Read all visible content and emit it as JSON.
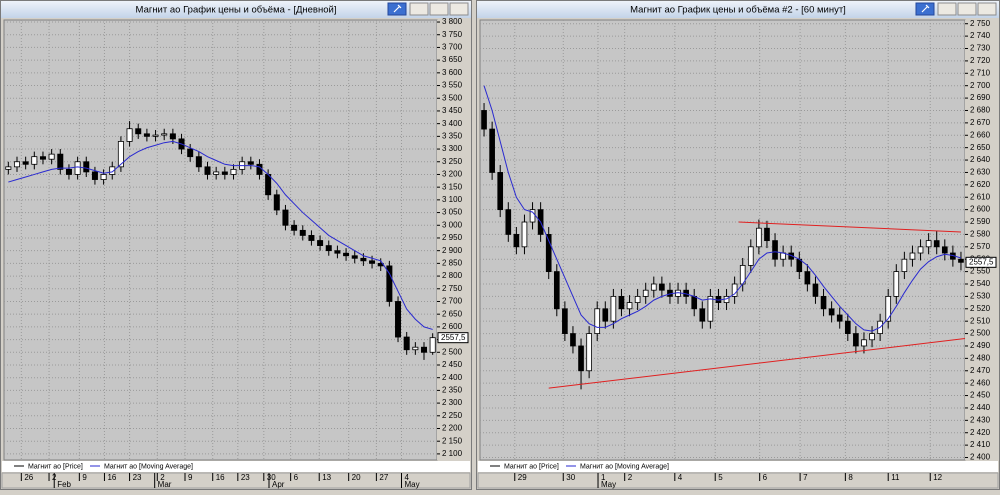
{
  "chart_data": [
    {
      "type": "candlestick",
      "title": "Магнит ао График цены и объёма - [Дневной]",
      "ylim": [
        2076,
        3808
      ],
      "yticks": [
        {
          "value": 3800,
          "label": "3 800"
        },
        {
          "value": 3750,
          "label": "3 750"
        },
        {
          "value": 3700,
          "label": "3 700"
        },
        {
          "value": 3650,
          "label": "3 650"
        },
        {
          "value": 3600,
          "label": "3 600"
        },
        {
          "value": 3550,
          "label": "3 550"
        },
        {
          "value": 3500,
          "label": "3 500"
        },
        {
          "value": 3450,
          "label": "3 450"
        },
        {
          "value": 3400,
          "label": "3 400"
        },
        {
          "value": 3350,
          "label": "3 350"
        },
        {
          "value": 3300,
          "label": "3 300"
        },
        {
          "value": 3250,
          "label": "3 250"
        },
        {
          "value": 3200,
          "label": "3 200"
        },
        {
          "value": 3150,
          "label": "3 150"
        },
        {
          "value": 3100,
          "label": "3 100"
        },
        {
          "value": 3050,
          "label": "3 050"
        },
        {
          "value": 3000,
          "label": "3 000"
        },
        {
          "value": 2950,
          "label": "2 950"
        },
        {
          "value": 2900,
          "label": "2 900"
        },
        {
          "value": 2850,
          "label": "2 850"
        },
        {
          "value": 2800,
          "label": "2 800"
        },
        {
          "value": 2750,
          "label": "2 750"
        },
        {
          "value": 2700,
          "label": "2 700"
        },
        {
          "value": 2650,
          "label": "2 650"
        },
        {
          "value": 2600,
          "label": "2 600"
        },
        {
          "value": 2550,
          "label": "2 550"
        },
        {
          "value": 2500,
          "label": "2 500"
        },
        {
          "value": 2450,
          "label": "2 450"
        },
        {
          "value": 2400,
          "label": "2 400"
        },
        {
          "value": 2350,
          "label": "2 350"
        },
        {
          "value": 2300,
          "label": "2 300"
        },
        {
          "value": 2250,
          "label": "2 250"
        },
        {
          "value": 2200,
          "label": "2 200"
        },
        {
          "value": 2150,
          "label": "2 150"
        },
        {
          "value": 2100,
          "label": "2 100"
        }
      ],
      "xticks": [
        {
          "value": 1.5,
          "label": "26"
        },
        {
          "value": 4.7,
          "label": "2"
        },
        {
          "value": 8.2,
          "label": "9"
        },
        {
          "value": 11.1,
          "label": "16"
        },
        {
          "value": 14,
          "label": "23"
        },
        {
          "value": 17.2,
          "label": "2"
        },
        {
          "value": 20.4,
          "label": "9"
        },
        {
          "value": 23.6,
          "label": "16"
        },
        {
          "value": 26.5,
          "label": "23"
        },
        {
          "value": 29.5,
          "label": "30"
        },
        {
          "value": 32.6,
          "label": "6"
        },
        {
          "value": 35.9,
          "label": "13"
        },
        {
          "value": 39.3,
          "label": "20"
        },
        {
          "value": 42.5,
          "label": "27"
        },
        {
          "value": 45.4,
          "label": "4"
        }
      ],
      "months": [
        {
          "value": 5.3,
          "label": "Feb"
        },
        {
          "value": 16.9,
          "label": "Mar"
        },
        {
          "value": 30.1,
          "label": "Apr"
        },
        {
          "value": 45.4,
          "label": "May"
        }
      ],
      "grid": true,
      "last_price": {
        "value": 2557.5,
        "label": "2557,5"
      },
      "series": [
        {
          "name": "Магнит ао [Price]",
          "color": "#000000",
          "open": [
            3220,
            3230,
            3250,
            3240,
            3270,
            3260,
            3280,
            3220,
            3200,
            3250,
            3210,
            3180,
            3200,
            3230,
            3330,
            3380,
            3360,
            3350,
            3355,
            3360,
            3340,
            3300,
            3270,
            3230,
            3200,
            3210,
            3200,
            3220,
            3250,
            3240,
            3200,
            3120,
            3060,
            3000,
            2980,
            2960,
            2940,
            2920,
            2900,
            2890,
            2880,
            2870,
            2860,
            2850,
            2840,
            2700,
            2560,
            2510,
            2520,
            2500
          ],
          "high": [
            3250,
            3270,
            3270,
            3290,
            3290,
            3300,
            3300,
            3240,
            3270,
            3270,
            3230,
            3220,
            3250,
            3350,
            3410,
            3400,
            3380,
            3375,
            3380,
            3380,
            3360,
            3320,
            3290,
            3250,
            3230,
            3230,
            3240,
            3270,
            3270,
            3260,
            3220,
            3140,
            3080,
            3020,
            3000,
            2980,
            2960,
            2940,
            2920,
            2910,
            2900,
            2890,
            2880,
            2870,
            2860,
            2720,
            2580,
            2540,
            2540,
            2575
          ],
          "low": [
            3200,
            3210,
            3220,
            3220,
            3240,
            3240,
            3200,
            3180,
            3180,
            3190,
            3160,
            3160,
            3180,
            3210,
            3310,
            3340,
            3330,
            3330,
            3335,
            3320,
            3280,
            3250,
            3210,
            3180,
            3180,
            3180,
            3180,
            3200,
            3220,
            3180,
            3100,
            3040,
            2980,
            2960,
            2940,
            2920,
            2900,
            2880,
            2870,
            2860,
            2850,
            2840,
            2830,
            2820,
            2680,
            2540,
            2490,
            2490,
            2470,
            2490
          ],
          "close": [
            3230,
            3250,
            3240,
            3270,
            3260,
            3280,
            3220,
            3200,
            3250,
            3210,
            3180,
            3200,
            3230,
            3330,
            3380,
            3360,
            3350,
            3355,
            3360,
            3340,
            3300,
            3270,
            3230,
            3200,
            3210,
            3200,
            3220,
            3250,
            3240,
            3200,
            3120,
            3060,
            3000,
            2980,
            2960,
            2940,
            2920,
            2900,
            2890,
            2880,
            2870,
            2860,
            2850,
            2840,
            2700,
            2560,
            2510,
            2520,
            2500,
            2557.5
          ]
        },
        {
          "name": "Магнит ао [Moving Average]",
          "color": "#2a2ad0",
          "values": [
            3170,
            3180,
            3190,
            3200,
            3210,
            3220,
            3225,
            3225,
            3230,
            3225,
            3215,
            3205,
            3210,
            3240,
            3270,
            3290,
            3305,
            3315,
            3325,
            3330,
            3320,
            3305,
            3290,
            3270,
            3255,
            3240,
            3235,
            3235,
            3235,
            3230,
            3200,
            3165,
            3120,
            3085,
            3050,
            3020,
            2990,
            2960,
            2940,
            2920,
            2900,
            2880,
            2870,
            2860,
            2810,
            2740,
            2670,
            2630,
            2600,
            2590
          ]
        }
      ]
    },
    {
      "type": "candlestick",
      "title": "Магнит ао График цены и объёма #2 - [60 минут]",
      "ylim": [
        2398,
        2753
      ],
      "yticks": [
        {
          "value": 2750,
          "label": "2 750"
        },
        {
          "value": 2740,
          "label": "2 740"
        },
        {
          "value": 2730,
          "label": "2 730"
        },
        {
          "value": 2720,
          "label": "2 720"
        },
        {
          "value": 2710,
          "label": "2 710"
        },
        {
          "value": 2700,
          "label": "2 700"
        },
        {
          "value": 2690,
          "label": "2 690"
        },
        {
          "value": 2680,
          "label": "2 680"
        },
        {
          "value": 2670,
          "label": "2 670"
        },
        {
          "value": 2660,
          "label": "2 660"
        },
        {
          "value": 2650,
          "label": "2 650"
        },
        {
          "value": 2640,
          "label": "2 640"
        },
        {
          "value": 2630,
          "label": "2 630"
        },
        {
          "value": 2620,
          "label": "2 620"
        },
        {
          "value": 2610,
          "label": "2 610"
        },
        {
          "value": 2600,
          "label": "2 600"
        },
        {
          "value": 2590,
          "label": "2 590"
        },
        {
          "value": 2580,
          "label": "2 580"
        },
        {
          "value": 2570,
          "label": "2 570"
        },
        {
          "value": 2560,
          "label": "2 560"
        },
        {
          "value": 2550,
          "label": "2 550"
        },
        {
          "value": 2540,
          "label": "2 540"
        },
        {
          "value": 2530,
          "label": "2 530"
        },
        {
          "value": 2520,
          "label": "2 520"
        },
        {
          "value": 2510,
          "label": "2 510"
        },
        {
          "value": 2500,
          "label": "2 500"
        },
        {
          "value": 2490,
          "label": "2 490"
        },
        {
          "value": 2480,
          "label": "2 480"
        },
        {
          "value": 2470,
          "label": "2 470"
        },
        {
          "value": 2460,
          "label": "2 460"
        },
        {
          "value": 2450,
          "label": "2 450"
        },
        {
          "value": 2440,
          "label": "2 440"
        },
        {
          "value": 2430,
          "label": "2 430"
        },
        {
          "value": 2420,
          "label": "2 420"
        },
        {
          "value": 2410,
          "label": "2 410"
        },
        {
          "value": 2400,
          "label": "2 400"
        }
      ],
      "xticks": [
        {
          "value": 3.8,
          "label": "29"
        },
        {
          "value": 9.8,
          "label": "30"
        },
        {
          "value": 14.1,
          "label": "1"
        },
        {
          "value": 17.4,
          "label": "2"
        },
        {
          "value": 23.6,
          "label": "4"
        },
        {
          "value": 28.6,
          "label": "5"
        },
        {
          "value": 34.1,
          "label": "6"
        },
        {
          "value": 39.1,
          "label": "7"
        },
        {
          "value": 44.7,
          "label": "8"
        },
        {
          "value": 50,
          "label": "11"
        },
        {
          "value": 55.2,
          "label": "12"
        }
      ],
      "months": [
        {
          "value": 14.1,
          "label": "May"
        }
      ],
      "grid": true,
      "last_price": {
        "value": 2557.5,
        "label": "2557,5"
      },
      "trendlines": [
        {
          "color": "#e02020",
          "from": [
            8,
            2456
          ],
          "to": [
            59.5,
            2496
          ]
        },
        {
          "color": "#e02020",
          "from": [
            31.5,
            2590
          ],
          "to": [
            59,
            2582
          ]
        }
      ],
      "series": [
        {
          "name": "Магнит ао [Price]",
          "color": "#000000",
          "open": [
            2680,
            2665,
            2630,
            2600,
            2580,
            2570,
            2590,
            2600,
            2580,
            2550,
            2520,
            2500,
            2490,
            2470,
            2500,
            2520,
            2510,
            2530,
            2520,
            2525,
            2530,
            2535,
            2540,
            2535,
            2530,
            2535,
            2530,
            2520,
            2510,
            2530,
            2525,
            2530,
            2540,
            2555,
            2570,
            2585,
            2575,
            2560,
            2565,
            2560,
            2550,
            2540,
            2530,
            2520,
            2515,
            2510,
            2500,
            2490,
            2495,
            2500,
            2510,
            2530,
            2550,
            2560,
            2565,
            2570,
            2575,
            2570,
            2565,
            2560
          ],
          "high": [
            2686,
            2671,
            2636,
            2606,
            2586,
            2596,
            2606,
            2606,
            2586,
            2556,
            2526,
            2506,
            2496,
            2506,
            2526,
            2526,
            2536,
            2536,
            2531,
            2536,
            2541,
            2546,
            2546,
            2541,
            2541,
            2541,
            2536,
            2526,
            2536,
            2536,
            2536,
            2546,
            2561,
            2576,
            2592,
            2591,
            2581,
            2571,
            2571,
            2566,
            2556,
            2546,
            2536,
            2526,
            2521,
            2516,
            2506,
            2501,
            2506,
            2516,
            2536,
            2556,
            2566,
            2571,
            2576,
            2581,
            2583,
            2576,
            2571,
            2566
          ],
          "low": [
            2659,
            2624,
            2594,
            2574,
            2564,
            2564,
            2584,
            2574,
            2544,
            2514,
            2494,
            2484,
            2455,
            2464,
            2494,
            2504,
            2504,
            2514,
            2514,
            2519,
            2524,
            2529,
            2529,
            2524,
            2524,
            2524,
            2514,
            2504,
            2504,
            2519,
            2519,
            2524,
            2534,
            2549,
            2564,
            2569,
            2554,
            2554,
            2554,
            2544,
            2534,
            2524,
            2514,
            2509,
            2504,
            2494,
            2484,
            2484,
            2489,
            2494,
            2504,
            2524,
            2544,
            2554,
            2559,
            2564,
            2564,
            2559,
            2554,
            2551
          ],
          "close": [
            2665,
            2630,
            2600,
            2580,
            2570,
            2590,
            2600,
            2580,
            2550,
            2520,
            2500,
            2490,
            2470,
            2500,
            2520,
            2510,
            2530,
            2520,
            2525,
            2530,
            2535,
            2540,
            2535,
            2530,
            2535,
            2530,
            2520,
            2510,
            2530,
            2525,
            2530,
            2540,
            2555,
            2570,
            2585,
            2575,
            2560,
            2565,
            2560,
            2550,
            2540,
            2530,
            2520,
            2515,
            2510,
            2500,
            2490,
            2495,
            2500,
            2510,
            2530,
            2550,
            2560,
            2565,
            2570,
            2575,
            2570,
            2565,
            2560,
            2557.5
          ]
        },
        {
          "name": "Магнит ао [Moving Average]",
          "color": "#2a2ad0",
          "values": [
            2700,
            2680,
            2655,
            2630,
            2610,
            2600,
            2598,
            2590,
            2575,
            2560,
            2545,
            2530,
            2515,
            2508,
            2505,
            2505,
            2508,
            2512,
            2515,
            2518,
            2522,
            2527,
            2530,
            2532,
            2533,
            2532,
            2530,
            2527,
            2528,
            2527,
            2528,
            2532,
            2540,
            2550,
            2560,
            2565,
            2566,
            2565,
            2563,
            2560,
            2555,
            2547,
            2538,
            2530,
            2522,
            2515,
            2508,
            2503,
            2502,
            2505,
            2512,
            2522,
            2533,
            2543,
            2552,
            2558,
            2562,
            2564,
            2563,
            2561
          ]
        }
      ]
    }
  ]
}
